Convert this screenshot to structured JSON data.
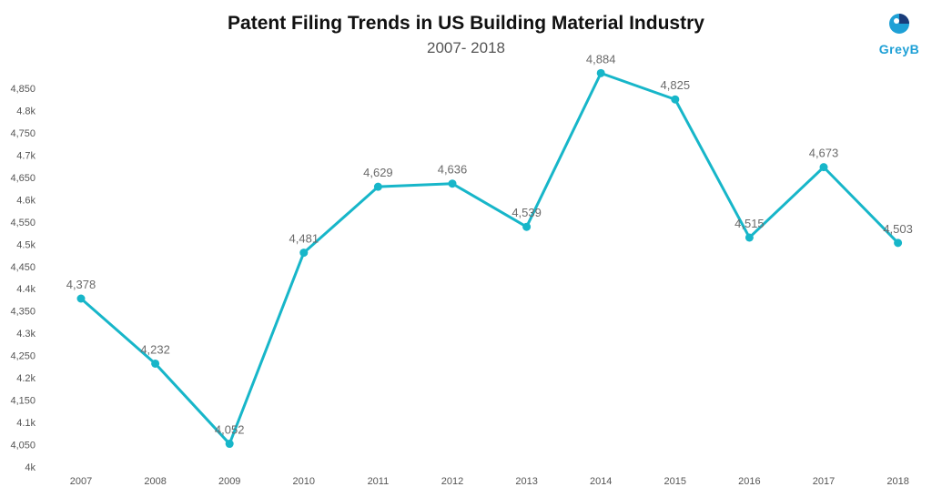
{
  "chart_data": {
    "type": "line",
    "title": "Patent Filing Trends in US Building Material Industry",
    "subtitle": "2007- 2018",
    "x": [
      "2007",
      "2008",
      "2009",
      "2010",
      "2011",
      "2012",
      "2013",
      "2014",
      "2015",
      "2016",
      "2017",
      "2018"
    ],
    "series": [
      {
        "values": [
          4378,
          4232,
          4052,
          4481,
          4629,
          4636,
          4539,
          4884,
          4825,
          4515,
          4673,
          4503
        ]
      }
    ],
    "data_labels": [
      "4,378",
      "4,232",
      "4,052",
      "4,481",
      "4,629",
      "4,636",
      "4,539",
      "4,884",
      "4,825",
      "4,515",
      "4,673",
      "4,503"
    ],
    "ylim": [
      4000,
      4850
    ],
    "yticks": [
      4000,
      4050,
      4100,
      4150,
      4200,
      4250,
      4300,
      4350,
      4400,
      4450,
      4500,
      4550,
      4600,
      4650,
      4700,
      4750,
      4800,
      4850
    ],
    "ytick_labels": [
      "4k",
      "4,050",
      "4.1k",
      "4,150",
      "4.2k",
      "4,250",
      "4.3k",
      "4,350",
      "4.4k",
      "4,450",
      "4.5k",
      "4,550",
      "4.6k",
      "4,650",
      "4.7k",
      "4,750",
      "4.8k",
      "4,850"
    ],
    "line_color": "#17b6c9",
    "grid": false,
    "legend": "none"
  },
  "brand": {
    "name": "GreyB",
    "color": "#1ea0d6",
    "icon": "greyb-logo-icon"
  }
}
